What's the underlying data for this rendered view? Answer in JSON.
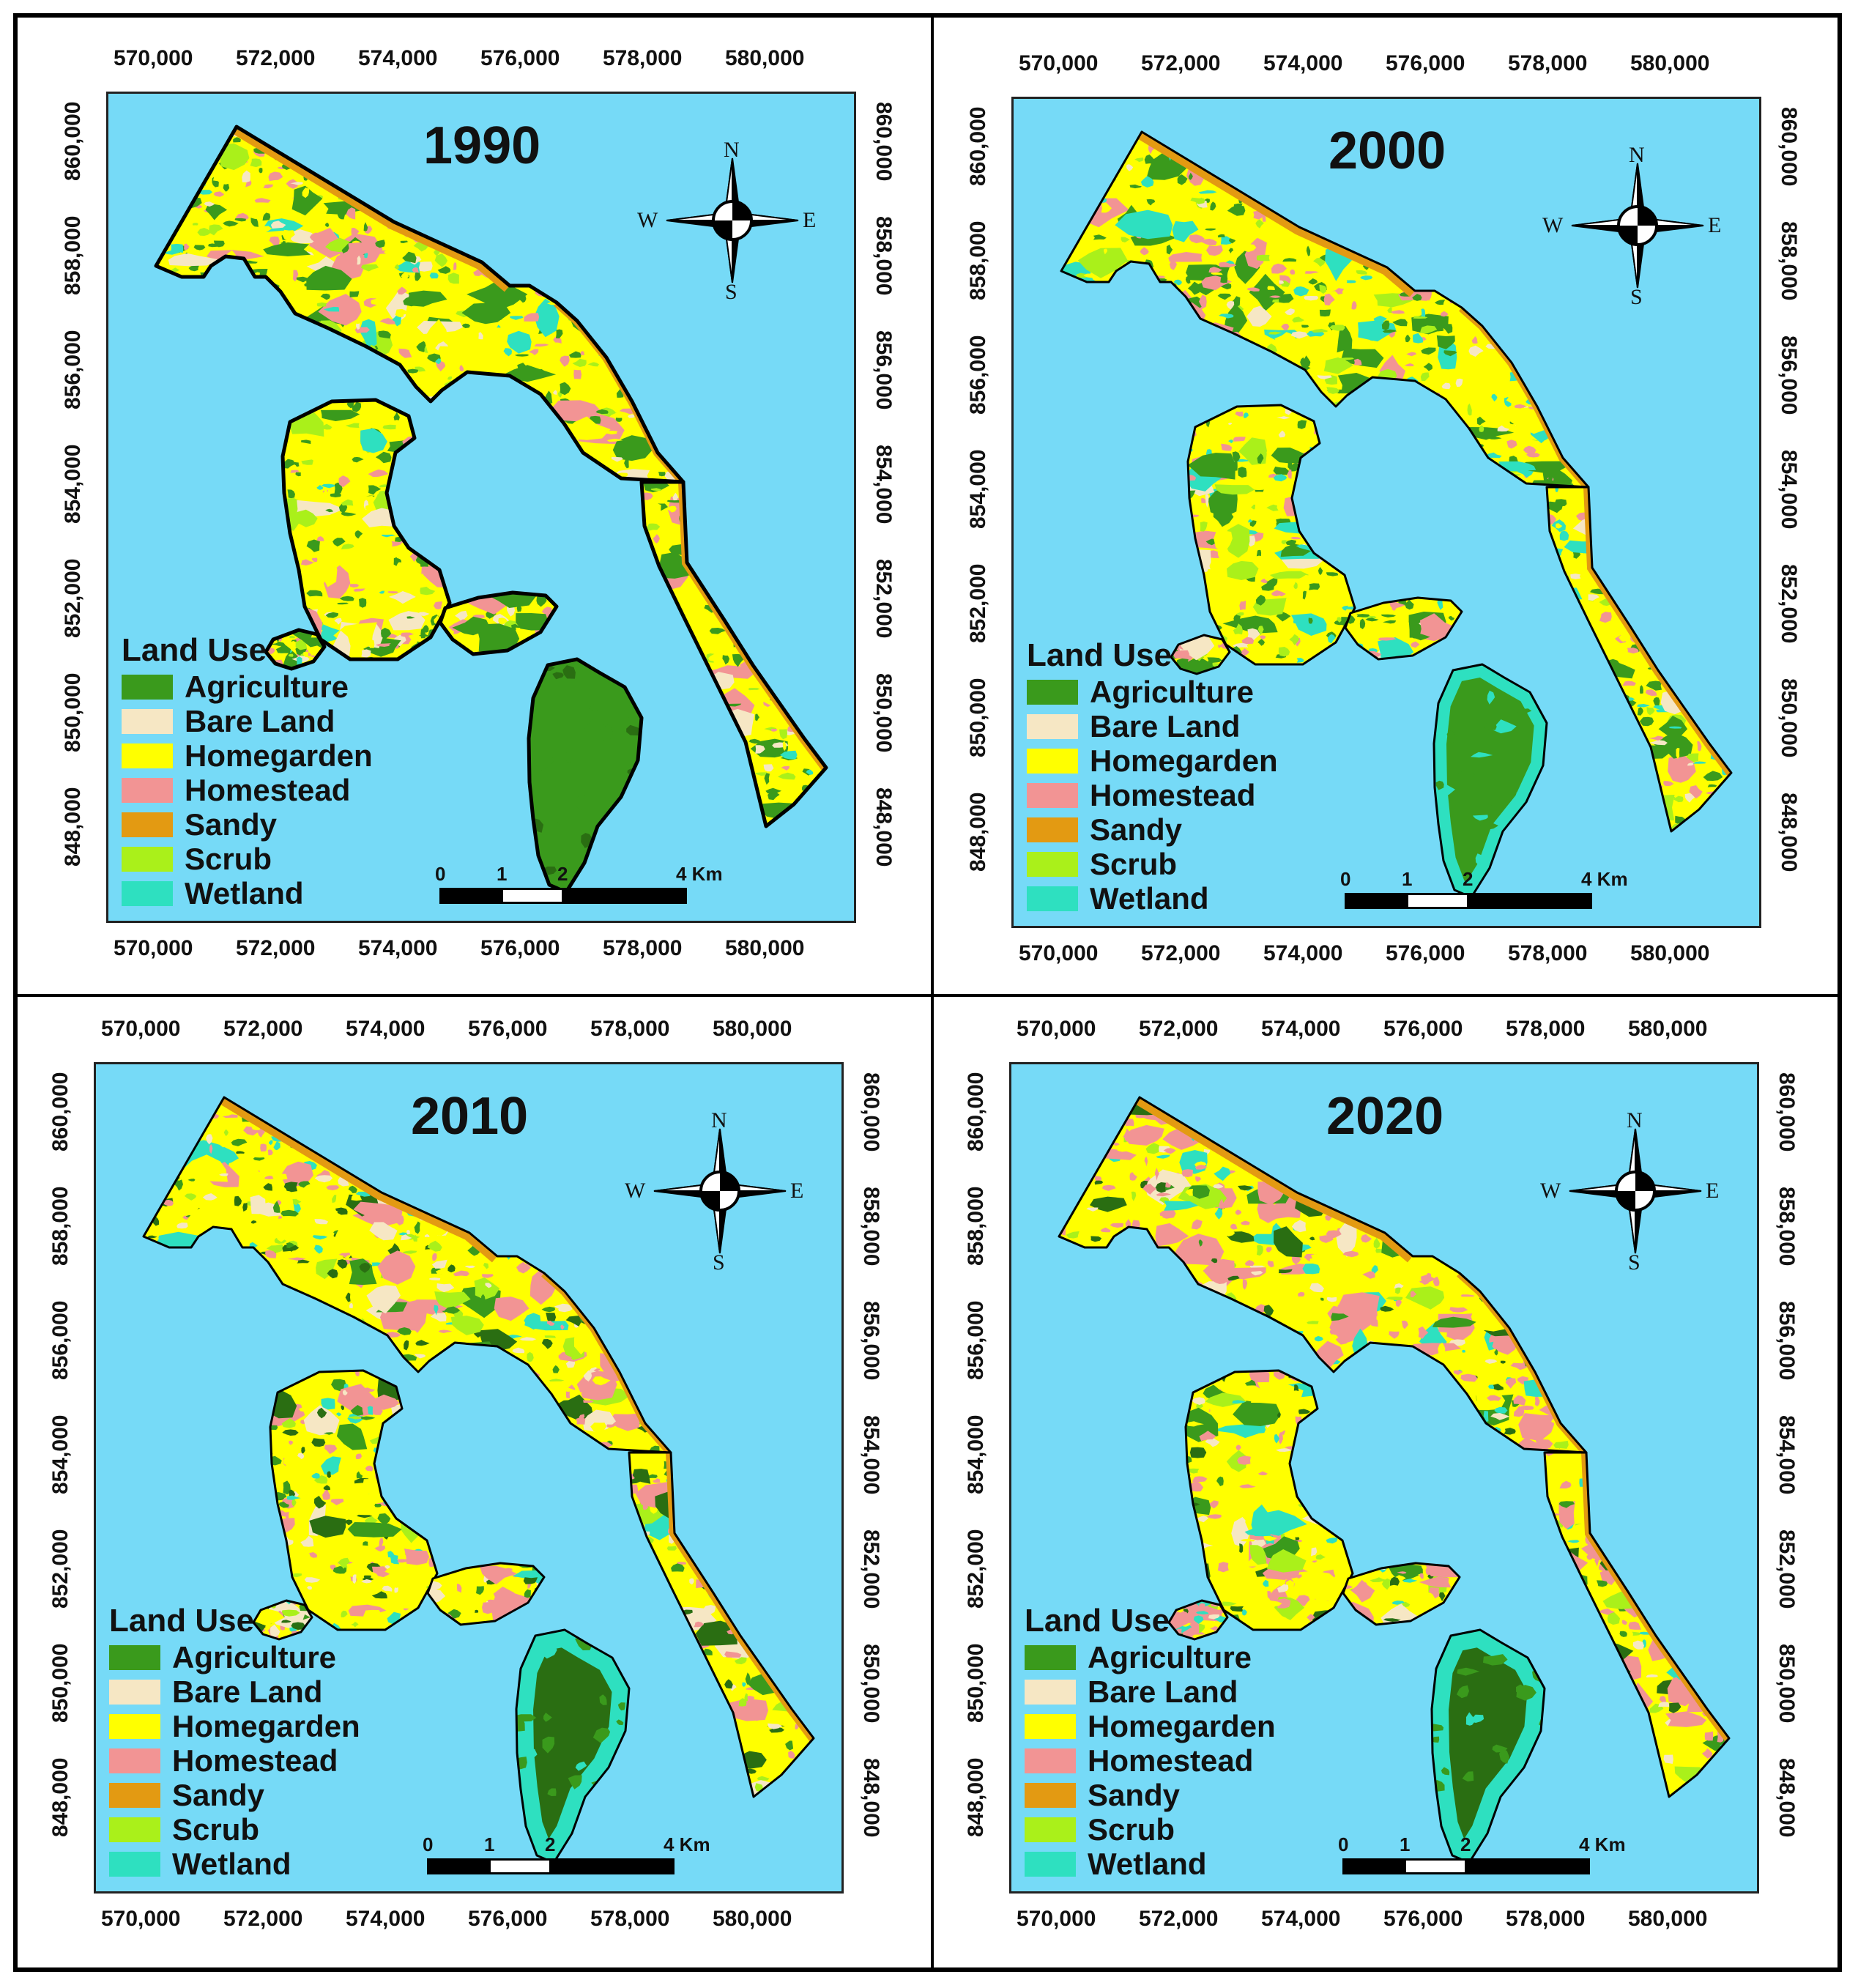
{
  "legend": {
    "title": "Land Use",
    "classes": [
      {
        "label": "Agriculture",
        "color": "#3a9a1c"
      },
      {
        "label": "Bare Land",
        "color": "#f6e7c4"
      },
      {
        "label": "Homegarden",
        "color": "#ffff00"
      },
      {
        "label": "Homestead",
        "color": "#f29494"
      },
      {
        "label": "Sandy",
        "color": "#e39a12"
      },
      {
        "label": "Scrub",
        "color": "#aaf01a"
      },
      {
        "label": "Wetland",
        "color": "#2ee0c0"
      }
    ]
  },
  "colors": {
    "water": "#76daf7",
    "agriculture_dark": "#2a6e12",
    "outline": "#000000"
  },
  "axes": {
    "x_ticks": [
      "570,000",
      "572,000",
      "574,000",
      "576,000",
      "578,000",
      "580,000"
    ],
    "y_ticks": [
      "848,000",
      "850,000",
      "852,000",
      "854,000",
      "856,000",
      "858,000",
      "860,000"
    ]
  },
  "compass": {
    "n": "N",
    "s": "S",
    "e": "E",
    "w": "W",
    "icon": "north-arrow-compass-icon"
  },
  "scale": {
    "labels": [
      "0",
      "1",
      "2",
      "4 Km"
    ]
  },
  "panels": [
    {
      "year": "1990"
    },
    {
      "year": "2000"
    },
    {
      "year": "2010"
    },
    {
      "year": "2020"
    }
  ]
}
